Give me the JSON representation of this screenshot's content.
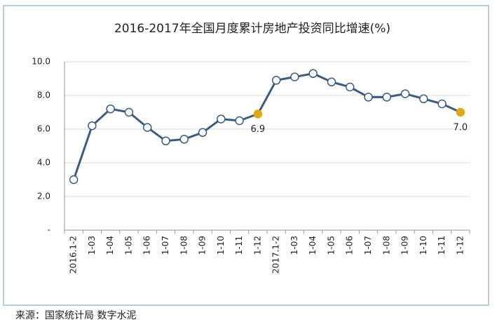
{
  "chart_data": {
    "type": "line",
    "title": "2016-2017年全国月度累计房地产投资同比增速(%)",
    "categories": [
      "2016.1-2",
      "1-03",
      "1-04",
      "1-05",
      "1-06",
      "1-07",
      "1-08",
      "1-09",
      "1-10",
      "1-11",
      "1-12",
      "2017.1-2",
      "1-03",
      "1-04",
      "1-05",
      "1-06",
      "1-07",
      "1-08",
      "1-09",
      "1-10",
      "1-11",
      "1-12"
    ],
    "series": [
      {
        "name": "同比增速",
        "color": "#3b5b84",
        "values": [
          3.0,
          6.2,
          7.2,
          7.0,
          6.1,
          5.3,
          5.4,
          5.8,
          6.6,
          6.5,
          6.9,
          8.9,
          9.1,
          9.3,
          8.8,
          8.5,
          7.9,
          7.9,
          8.1,
          7.8,
          7.5,
          7.0
        ],
        "value_labels": [
          null,
          null,
          null,
          null,
          null,
          null,
          null,
          null,
          null,
          null,
          "6.9",
          null,
          null,
          null,
          null,
          null,
          null,
          null,
          null,
          null,
          null,
          "7.0"
        ]
      }
    ],
    "highlight_color": "#e0a812",
    "ylim": [
      0,
      10
    ],
    "yticks": [
      {
        "value": 0,
        "label": "-"
      },
      {
        "value": 2,
        "label": "2.0"
      },
      {
        "value": 4,
        "label": "4.0"
      },
      {
        "value": 6,
        "label": "6.0"
      },
      {
        "value": 8,
        "label": "8.0"
      },
      {
        "value": 10,
        "label": "10.0"
      }
    ],
    "grid": true,
    "source": "来源：国家统计局  数字水泥"
  }
}
